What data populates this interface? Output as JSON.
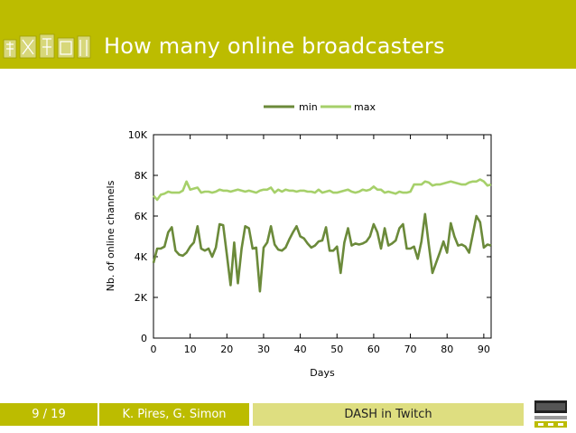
{
  "slide": {
    "title": "How many online broadcasters",
    "footer": {
      "page": "9 / 19",
      "authors": "K. Pires, G. Simon",
      "talk": "DASH in Twitch"
    }
  },
  "colors": {
    "accent": "#bcbc00",
    "min_line": "#6b8a3a",
    "max_line": "#a6d06a"
  },
  "chart_data": {
    "type": "line",
    "title": "",
    "xlabel": "Days",
    "ylabel": "Nb. of online channels",
    "xlim": [
      0,
      92
    ],
    "ylim": [
      0,
      10000
    ],
    "xticks": [
      0,
      10,
      20,
      30,
      40,
      50,
      60,
      70,
      80,
      90
    ],
    "xtick_labels": [
      "0",
      "10",
      "20",
      "30",
      "40",
      "50",
      "60",
      "70",
      "80",
      "90"
    ],
    "yticks": [
      0,
      2000,
      4000,
      6000,
      8000,
      10000
    ],
    "ytick_labels": [
      "0",
      "2K",
      "4K",
      "6K",
      "8K",
      "10K"
    ],
    "legend_position": "top",
    "series": [
      {
        "name": "min",
        "color": "#6b8a3a",
        "values": [
          3700,
          4400,
          4400,
          4500,
          5200,
          5450,
          4300,
          4100,
          4050,
          4200,
          4500,
          4700,
          5500,
          4400,
          4300,
          4400,
          4000,
          4450,
          5600,
          5550,
          4100,
          2600,
          4700,
          2700,
          4400,
          5500,
          5400,
          4400,
          4450,
          2300,
          4450,
          4700,
          5500,
          4600,
          4350,
          4300,
          4450,
          4850,
          5200,
          5500,
          5000,
          4900,
          4650,
          4450,
          4550,
          4750,
          4800,
          5450,
          4300,
          4300,
          4500,
          3200,
          4700,
          5400,
          4550,
          4650,
          4600,
          4650,
          4750,
          5000,
          5600,
          5200,
          4400,
          5400,
          4550,
          4650,
          4800,
          5400,
          5600,
          4400,
          4400,
          4500,
          3900,
          4750,
          6100,
          4600,
          3200,
          3700,
          4200,
          4750,
          4200,
          5650,
          5000,
          4550,
          4600,
          4500,
          4200,
          5100,
          6000,
          5700,
          4450,
          4600,
          4550
        ]
      },
      {
        "name": "max",
        "color": "#a6d06a",
        "values": [
          7000,
          6800,
          7050,
          7100,
          7200,
          7150,
          7150,
          7150,
          7250,
          7700,
          7300,
          7350,
          7400,
          7150,
          7200,
          7200,
          7150,
          7200,
          7300,
          7250,
          7250,
          7200,
          7250,
          7300,
          7250,
          7200,
          7250,
          7200,
          7150,
          7250,
          7300,
          7300,
          7400,
          7150,
          7300,
          7200,
          7300,
          7250,
          7250,
          7200,
          7250,
          7250,
          7200,
          7200,
          7150,
          7300,
          7150,
          7200,
          7250,
          7150,
          7150,
          7200,
          7250,
          7300,
          7200,
          7150,
          7200,
          7300,
          7250,
          7300,
          7450,
          7300,
          7300,
          7150,
          7200,
          7150,
          7100,
          7200,
          7150,
          7150,
          7200,
          7550,
          7550,
          7550,
          7700,
          7650,
          7500,
          7550,
          7550,
          7600,
          7650,
          7700,
          7650,
          7600,
          7550,
          7550,
          7650,
          7700,
          7700,
          7800,
          7700,
          7500,
          7550
        ]
      }
    ]
  }
}
